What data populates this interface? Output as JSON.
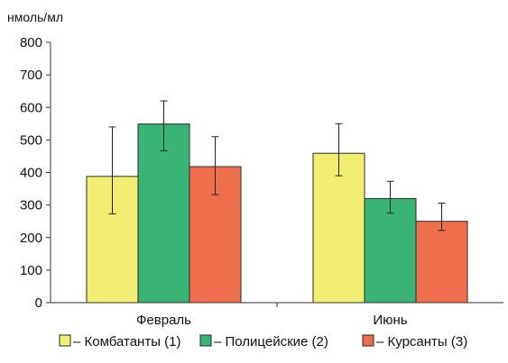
{
  "chart_data": {
    "type": "bar",
    "unit_label": "нмоль/мл",
    "categories": [
      "Февраль",
      "Июнь"
    ],
    "yticks": [
      "0",
      "100",
      "200",
      "300",
      "400",
      "500",
      "600",
      "700",
      "800"
    ],
    "ylim": [
      0,
      800
    ],
    "grid": false,
    "legend_position": "bottom",
    "series": [
      {
        "name": "– Комбатанты (1)",
        "color": "#f2ee72",
        "values": [
          388,
          459
        ],
        "error_low": [
          273,
          390
        ],
        "error_high": [
          540,
          550
        ]
      },
      {
        "name": "– Полицейские (2)",
        "color": "#3ab475",
        "values": [
          549,
          320
        ],
        "error_low": [
          467,
          275
        ],
        "error_high": [
          620,
          373
        ]
      },
      {
        "name": "– Курсанты (3)",
        "color": "#ef6e4c",
        "values": [
          418,
          250
        ],
        "error_low": [
          332,
          222
        ],
        "error_high": [
          510,
          306
        ]
      }
    ]
  }
}
